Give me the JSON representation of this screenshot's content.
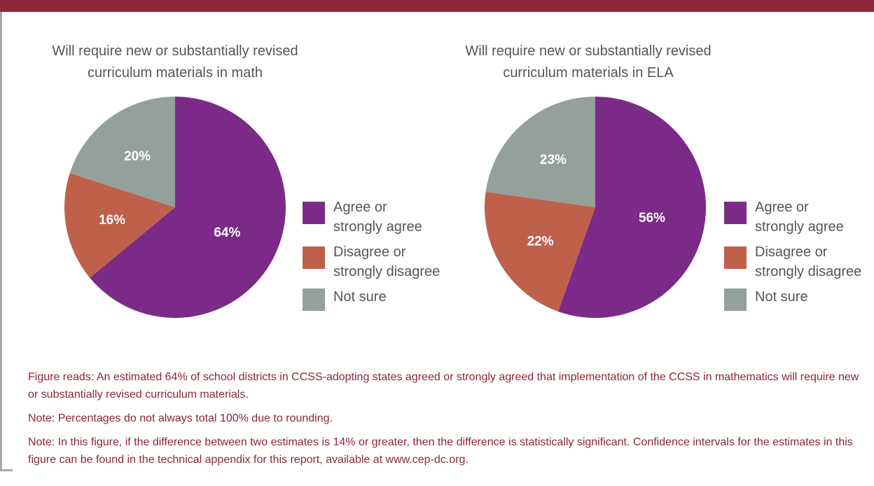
{
  "colors": {
    "header_bar": "#8a2a3a",
    "agree": "#7b2a87",
    "disagree": "#bf604a",
    "not_sure": "#94a09a",
    "note_text": "#8b2734"
  },
  "chart_data": [
    {
      "type": "pie",
      "title": "Will require new or substantially revised\ncurriculum materials in math",
      "categories": [
        "Agree or strongly agree",
        "Disagree or strongly disagree",
        "Not sure"
      ],
      "values": [
        64,
        16,
        20
      ],
      "labels": [
        "64%",
        "16%",
        "20%"
      ],
      "legend": "right"
    },
    {
      "type": "pie",
      "title": "Will require new or substantially revised\ncurriculum materials in ELA",
      "categories": [
        "Agree or strongly agree",
        "Disagree or strongly disagree",
        "Not sure"
      ],
      "values": [
        56,
        22,
        23
      ],
      "labels": [
        "56%",
        "22%",
        "23%"
      ],
      "legend": "right"
    }
  ],
  "legend": {
    "items": [
      {
        "label_line1": "Agree or",
        "label_line2": "strongly agree",
        "icon": "square-swatch"
      },
      {
        "label_line1": "Disagree or",
        "label_line2": "strongly disagree",
        "icon": "square-swatch"
      },
      {
        "label_line1": "Not sure",
        "label_line2": "",
        "icon": "square-swatch"
      }
    ]
  },
  "notes": {
    "figure_reads": "Figure reads: An estimated 64% of school districts in CCSS-adopting states agreed or strongly agreed that implementation of the CCSS in mathematics will require new or substantially revised curriculum materials.",
    "note_rounding": "Note: Percentages do not always total 100% due to rounding.",
    "note_significance": "Note: In this figure, if the difference between two estimates is 14% or greater, then the difference is statistically significant.  Confidence intervals for the estimates in this figure can be found in the technical appendix for this report, available at www.cep-dc.org."
  }
}
